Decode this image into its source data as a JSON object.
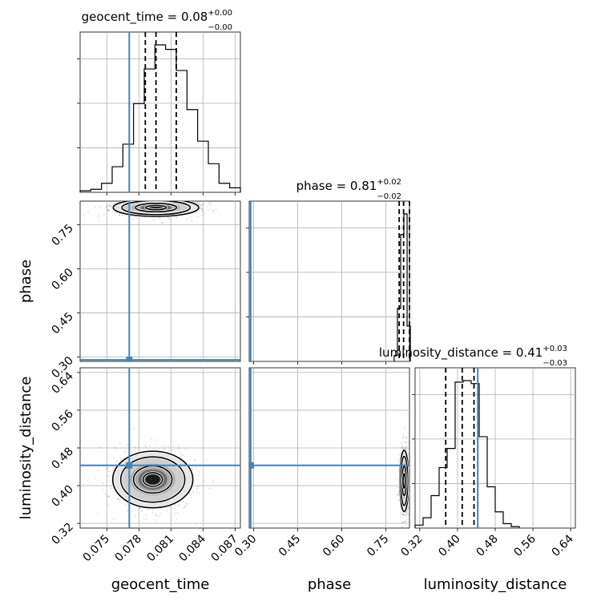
{
  "chart_data": {
    "type": "corner",
    "parameters": [
      {
        "name": "geocent_time",
        "xlabel": "geocent_time",
        "ylabel": "",
        "title_main": "geocent_time = 0.08",
        "title_sup": "+0.00",
        "title_sub": "−0.00",
        "truth": 0.0771,
        "median": 0.0796,
        "q16": 0.0786,
        "q84": 0.0815,
        "range": [
          0.0725,
          0.0875
        ],
        "ticks": [
          0.075,
          0.078,
          0.081,
          0.084,
          0.087
        ],
        "tick_labels": [
          "0.075",
          "0.078",
          "0.081",
          "0.084",
          "0.087"
        ]
      },
      {
        "name": "phase",
        "xlabel": "phase",
        "ylabel": "phase",
        "title_main": "phase = 0.81",
        "title_sup": "+0.02",
        "title_sub": "−0.02",
        "truth": 0.29,
        "median": 0.81,
        "q16": 0.795,
        "q84": 0.83,
        "range": [
          0.285,
          0.83
        ],
        "ticks": [
          0.3,
          0.45,
          0.6,
          0.75
        ],
        "tick_labels": [
          "0.30",
          "0.45",
          "0.60",
          "0.75"
        ]
      },
      {
        "name": "luminosity_distance",
        "xlabel": "luminosity_distance",
        "ylabel": "luminosity_distance",
        "title_main": "luminosity_distance = 0.41",
        "title_sup": "+0.03",
        "title_sub": "−0.03",
        "truth": 0.443,
        "median": 0.41,
        "q16": 0.375,
        "q84": 0.435,
        "range": [
          0.31,
          0.65
        ],
        "ticks": [
          0.32,
          0.4,
          0.48,
          0.56,
          0.64
        ],
        "tick_labels": [
          "0.32",
          "0.40",
          "0.48",
          "0.56",
          "0.64"
        ]
      }
    ],
    "histograms": [
      {
        "param": "geocent_time",
        "bin_edges": [
          0.0725,
          0.0735,
          0.0745,
          0.0755,
          0.0765,
          0.0775,
          0.0785,
          0.0795,
          0.0805,
          0.0815,
          0.0825,
          0.0835,
          0.0845,
          0.0855,
          0.0865,
          0.0875
        ],
        "counts": [
          0.01,
          0.02,
          0.06,
          0.17,
          0.32,
          0.59,
          0.82,
          0.98,
          0.95,
          0.81,
          0.55,
          0.34,
          0.19,
          0.06,
          0.03
        ]
      },
      {
        "param": "phase",
        "bin_edges": [
          0.778,
          0.789,
          0.8,
          0.811,
          0.822,
          0.833
        ],
        "counts": [
          0.04,
          0.36,
          0.86,
          1.0,
          0.24
        ]
      },
      {
        "param": "luminosity_distance",
        "bin_edges": [
          0.31,
          0.327,
          0.344,
          0.361,
          0.378,
          0.395,
          0.412,
          0.429,
          0.446,
          0.463,
          0.48,
          0.497,
          0.514,
          0.531
        ],
        "counts": [
          0.02,
          0.07,
          0.22,
          0.41,
          0.54,
          0.99,
          1.0,
          0.98,
          0.62,
          0.28,
          0.11,
          0.03,
          0.01
        ]
      }
    ],
    "contours_2d": [
      {
        "x": "geocent_time",
        "y": "phase",
        "center": [
          0.0796,
          0.808
        ],
        "sigma": [
          0.0016,
          0.012
        ]
      },
      {
        "x": "geocent_time",
        "y": "luminosity_distance",
        "center": [
          0.0793,
          0.413
        ],
        "sigma": [
          0.0015,
          0.024
        ]
      },
      {
        "x": "phase",
        "y": "luminosity_distance",
        "center": [
          0.812,
          0.41
        ],
        "sigma": [
          0.006,
          0.026
        ]
      }
    ],
    "truth_color": "#4682b4",
    "grid": true
  }
}
